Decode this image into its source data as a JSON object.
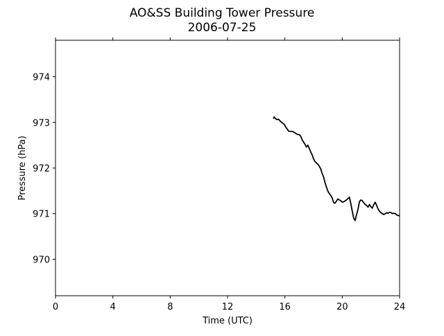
{
  "chart_data": {
    "type": "line",
    "title": "AO&SS Building Tower Pressure",
    "subtitle": "2006-07-25",
    "xlabel": "Time (UTC)",
    "ylabel": "Pressure (hPa)",
    "xlim": [
      0,
      24
    ],
    "ylim": [
      969.2,
      974.8
    ],
    "xticks": [
      0,
      4,
      8,
      12,
      16,
      20,
      24
    ],
    "yticks": [
      970,
      971,
      972,
      973,
      974
    ],
    "grid": false,
    "line_color": "#000000",
    "series": [
      {
        "x": [
          15.2,
          15.25,
          15.35,
          15.45,
          15.55,
          15.7,
          15.85,
          15.95,
          16.05,
          16.15,
          16.25,
          16.4,
          16.55,
          16.7,
          16.85,
          17.0,
          17.1,
          17.2,
          17.3,
          17.4,
          17.5,
          17.6,
          17.7,
          17.8,
          17.9,
          18.0,
          18.1,
          18.2,
          18.3,
          18.4,
          18.5,
          18.6,
          18.7,
          18.8,
          18.9,
          19.0,
          19.1,
          19.2,
          19.3,
          19.4,
          19.5,
          19.6,
          19.7,
          19.8,
          19.9,
          20.0,
          20.1,
          20.2,
          20.3,
          20.4,
          20.5,
          20.6,
          20.7,
          20.8,
          20.9,
          20.95,
          21.0,
          21.05,
          21.1,
          21.15,
          21.2,
          21.3,
          21.4,
          21.5,
          21.6,
          21.7,
          21.8,
          21.9,
          22.0,
          22.1,
          22.2,
          22.3,
          22.4,
          22.5,
          22.6,
          22.7,
          22.8,
          22.9,
          23.0,
          23.1,
          23.2,
          23.3,
          23.4,
          23.5,
          23.6,
          23.7,
          23.8,
          23.9,
          24.0
        ],
        "y": [
          973.08,
          973.12,
          973.08,
          973.06,
          973.07,
          973.02,
          972.98,
          972.96,
          972.9,
          972.86,
          972.81,
          972.8,
          972.8,
          972.77,
          972.74,
          972.73,
          972.7,
          972.62,
          972.57,
          972.52,
          972.46,
          972.5,
          972.43,
          972.35,
          972.29,
          972.2,
          972.14,
          972.11,
          972.08,
          972.04,
          971.98,
          971.88,
          971.8,
          971.68,
          971.58,
          971.49,
          971.44,
          971.4,
          971.34,
          971.24,
          971.23,
          971.28,
          971.32,
          971.3,
          971.28,
          971.25,
          971.26,
          971.28,
          971.3,
          971.33,
          971.36,
          971.22,
          971.05,
          970.9,
          970.85,
          970.92,
          970.98,
          971.03,
          971.1,
          971.18,
          971.26,
          971.3,
          971.28,
          971.24,
          971.2,
          971.18,
          971.14,
          971.2,
          971.15,
          971.12,
          971.2,
          971.25,
          971.18,
          971.1,
          971.05,
          971.02,
          971.0,
          970.98,
          971.0,
          971.02,
          971.01,
          971.03,
          971.02,
          971.0,
          971.01,
          971.0,
          970.97,
          970.96,
          970.95
        ]
      }
    ]
  }
}
